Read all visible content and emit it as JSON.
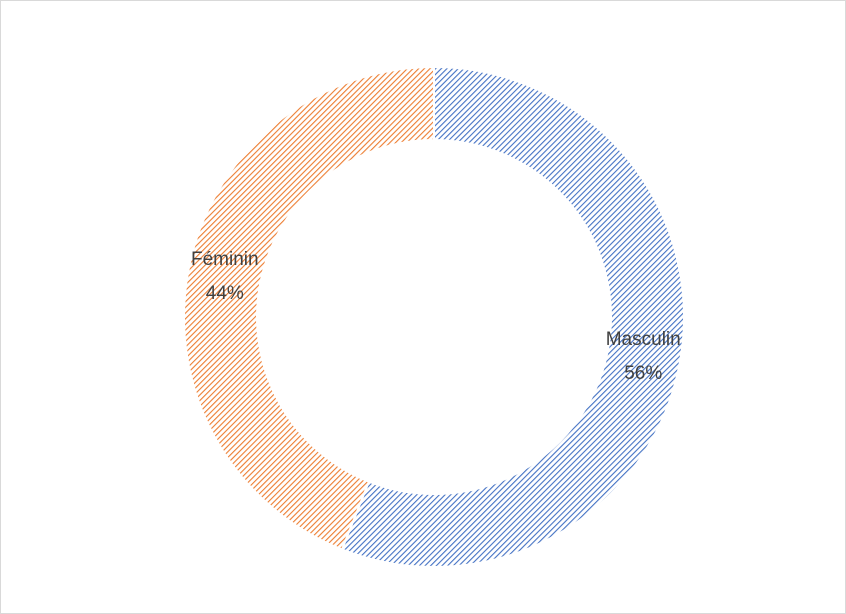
{
  "chart_data": {
    "type": "donut",
    "categories": [
      "Masculin",
      "Féminin"
    ],
    "values": [
      56,
      44
    ],
    "value_labels": [
      "56%",
      "44%"
    ],
    "colors": [
      "#4472c4",
      "#ed7d31"
    ],
    "hatched": true
  }
}
